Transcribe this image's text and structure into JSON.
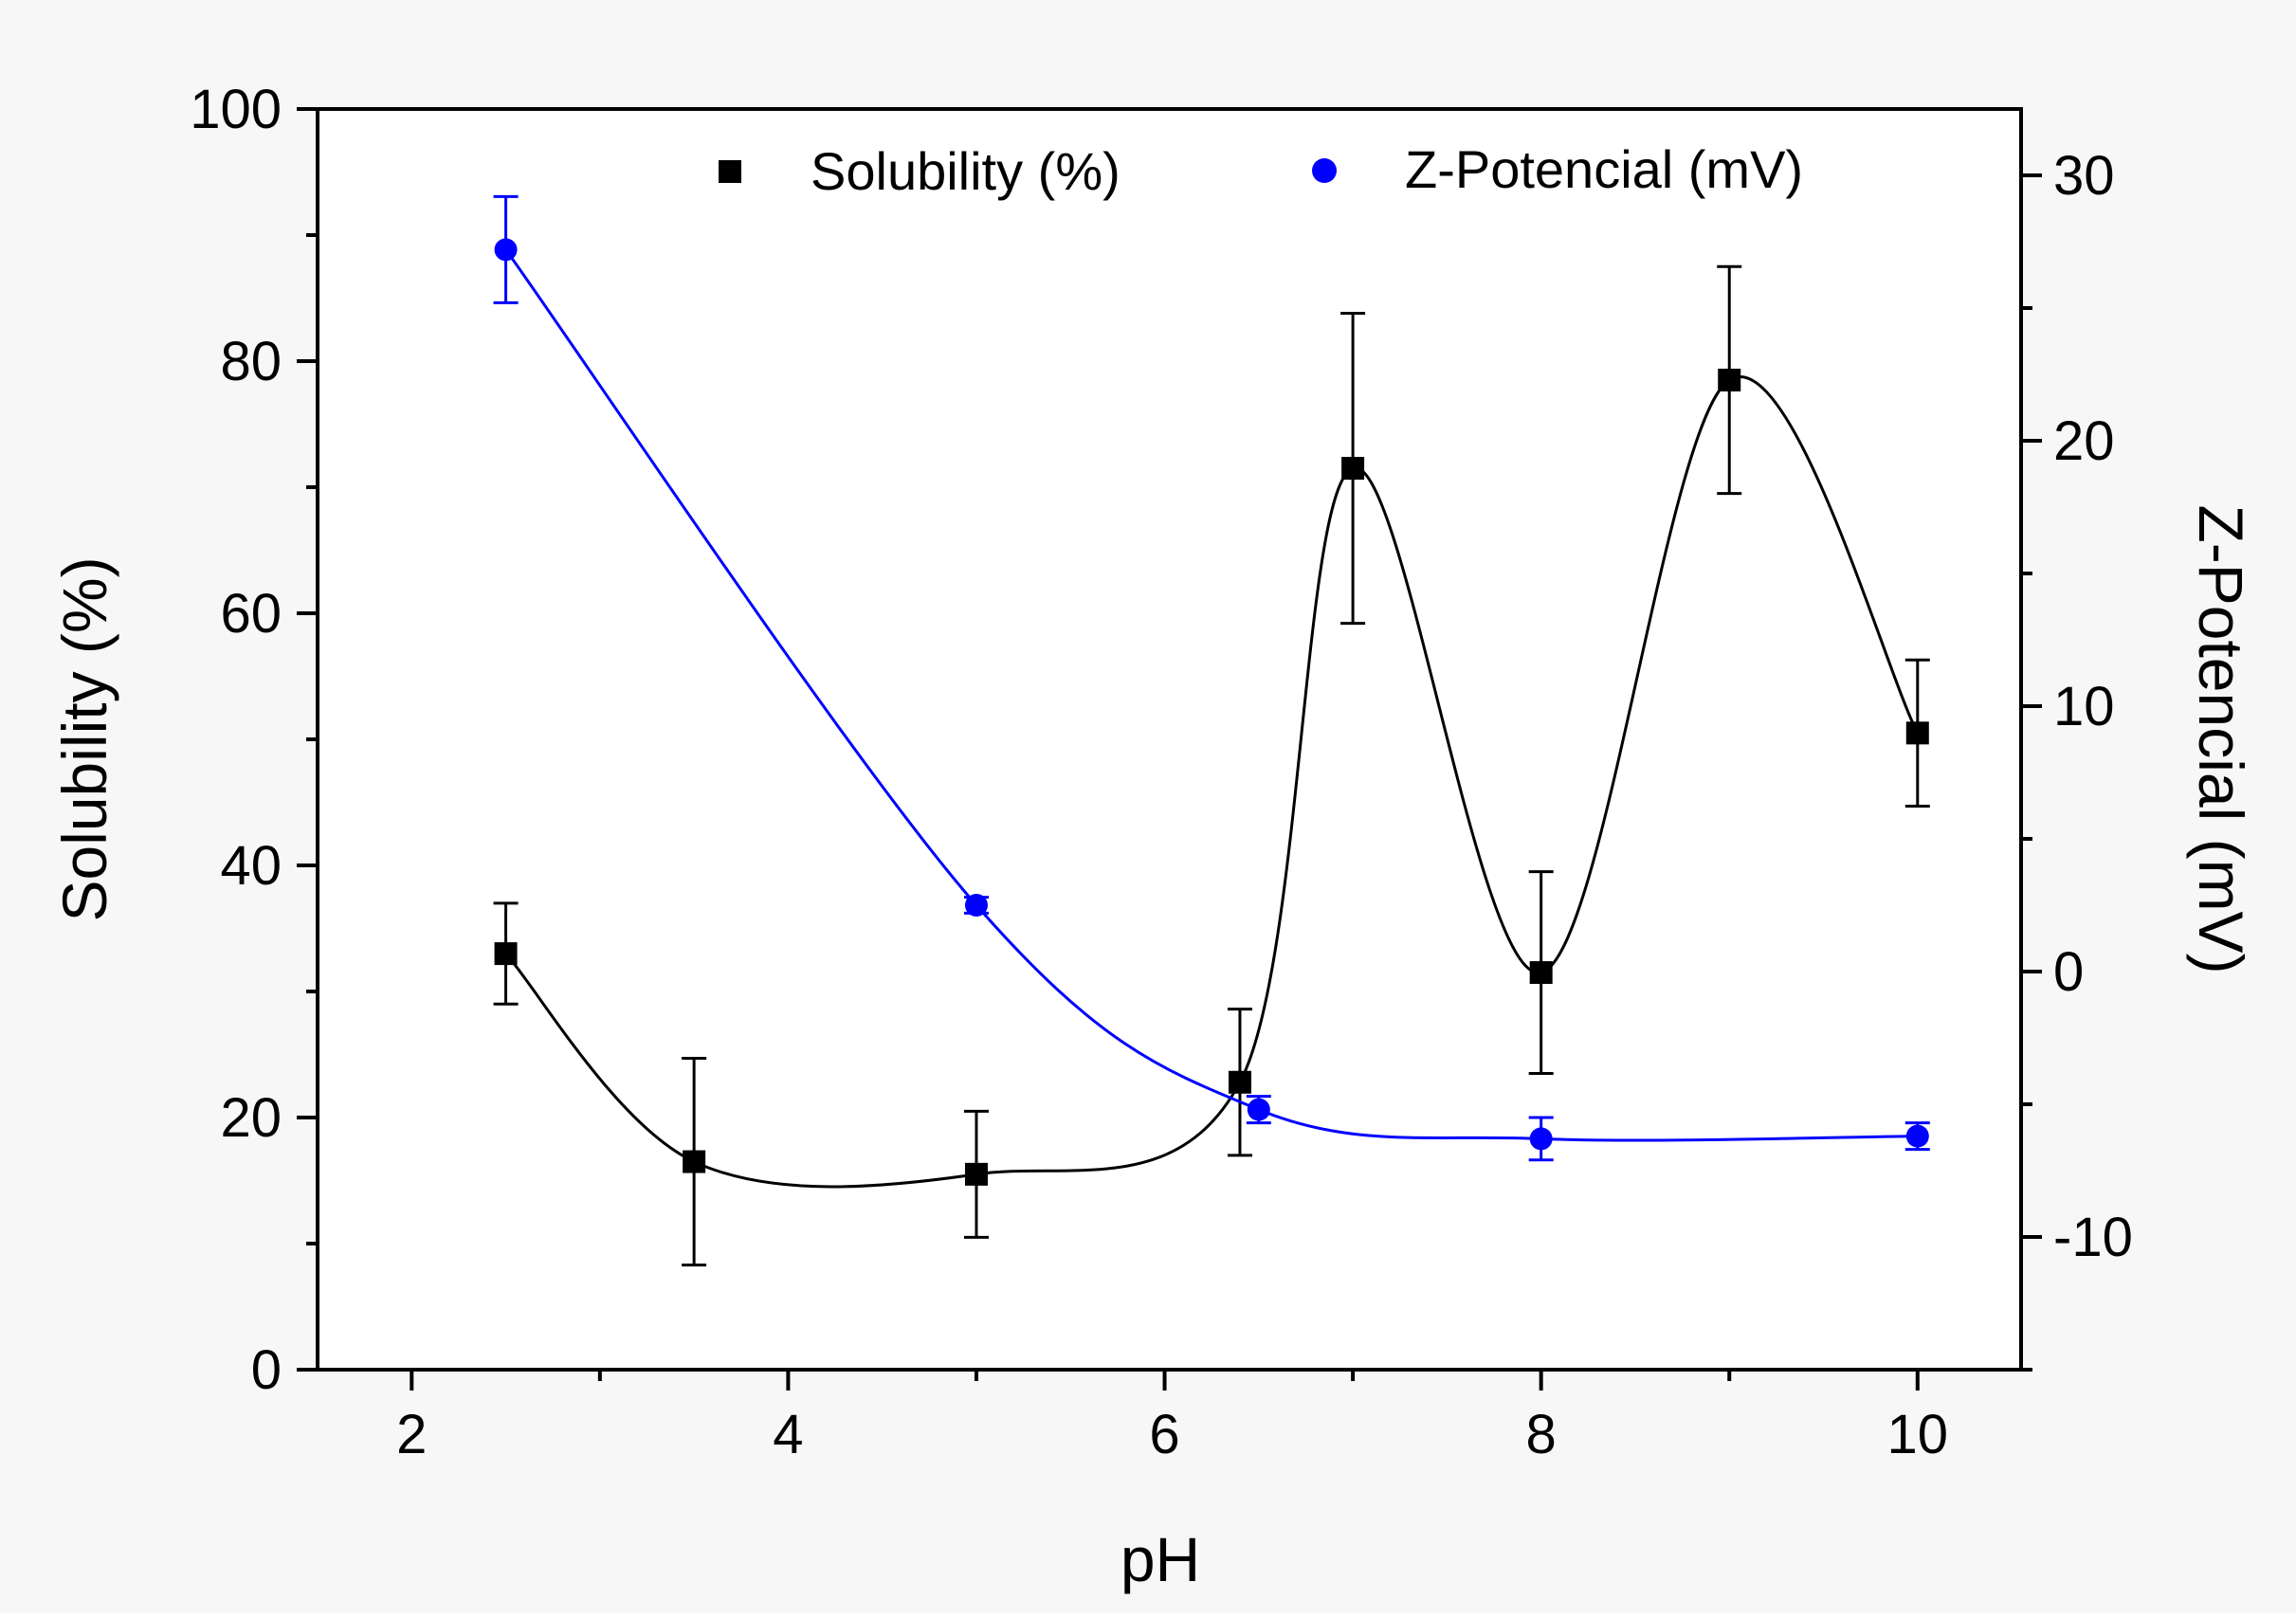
{
  "chart_data": {
    "type": "scatter",
    "xlabel": "pH",
    "ylabel_left": "Solubility (%)",
    "ylabel_right": "Z-Potencial (mV)",
    "xlim": [
      1.5,
      10.55
    ],
    "ylim_left": [
      0,
      100
    ],
    "ylim_right": [
      -15,
      32.5
    ],
    "x_ticks": [
      "2",
      "4",
      "6",
      "8",
      "10"
    ],
    "y_left_ticks": [
      "0",
      "20",
      "40",
      "60",
      "80",
      "100"
    ],
    "y_right_ticks": [
      "-10",
      "0",
      "10",
      "20",
      "30"
    ],
    "grid": false,
    "legend_position": "top",
    "colors": {
      "solubility": "#000000",
      "zpotential": "#0000ff",
      "background": "#f7f7f7"
    },
    "series": [
      {
        "name": "Solubility (%)",
        "axis": "left",
        "marker": "square",
        "x": [
          2.5,
          3.5,
          5.0,
          6.4,
          7.0,
          8.0,
          9.0,
          10.0
        ],
        "values": [
          33,
          16.5,
          15.5,
          22.8,
          71.5,
          31.5,
          78.5,
          50.5
        ],
        "errors": [
          4.0,
          8.2,
          5.0,
          5.8,
          12.3,
          8.0,
          9.0,
          5.8
        ]
      },
      {
        "name": "Z-Potencial (mV)",
        "axis": "right",
        "marker": "circle",
        "x": [
          2.5,
          5.0,
          6.5,
          8.0,
          10.0
        ],
        "values": [
          27.2,
          2.5,
          -5.2,
          -6.3,
          -6.2
        ],
        "errors": [
          2.0,
          0.3,
          0.5,
          0.8,
          0.5
        ]
      }
    ]
  }
}
